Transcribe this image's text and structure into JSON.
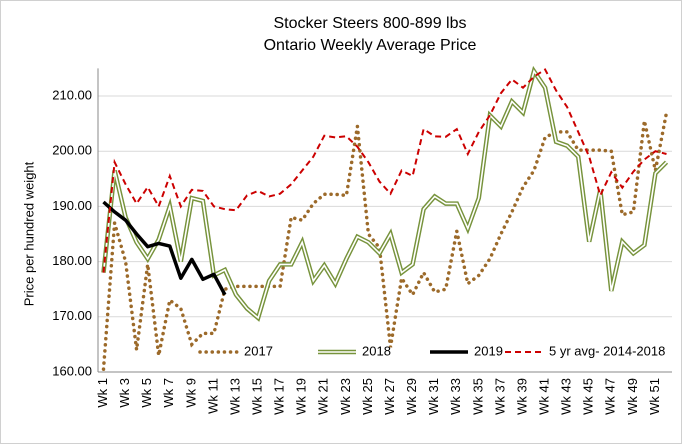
{
  "chart_data": {
    "type": "line",
    "title": [
      "Stocker Steers 800-899 lbs",
      "Ontario Weekly Average Price"
    ],
    "y_label": "Price per hundred weight",
    "categories": [
      "Wk 1",
      null,
      "Wk 3",
      null,
      "Wk 5",
      null,
      "Wk 7",
      null,
      "Wk 9",
      null,
      "Wk 11",
      null,
      "Wk 13",
      null,
      "Wk 15",
      null,
      "Wk 17",
      null,
      "Wk 19",
      null,
      "Wk 21",
      null,
      "Wk 23",
      null,
      "Wk 25",
      null,
      "Wk 27",
      null,
      "Wk 29",
      null,
      "Wk 31",
      null,
      "Wk 33",
      null,
      "Wk 35",
      null,
      "Wk 37",
      null,
      "Wk 39",
      null,
      "Wk 41",
      null,
      "Wk 43",
      null,
      "Wk 45",
      null,
      "Wk 47",
      null,
      "Wk 49",
      null,
      "Wk 51",
      null
    ],
    "ylim": [
      160,
      215
    ],
    "yticks": [
      {
        "value": 160,
        "label": "160.00"
      },
      {
        "value": 170,
        "label": "170.00"
      },
      {
        "value": 180,
        "label": "180.00"
      },
      {
        "value": 190,
        "label": "190.00"
      },
      {
        "value": 200,
        "label": "200.00"
      },
      {
        "value": 210,
        "label": "210.00"
      }
    ],
    "grid": true,
    "legend": "bottom",
    "series": [
      {
        "name": "2017",
        "color": "#9c6a2a",
        "style": "dotted",
        "values": [
          160.5,
          187,
          180,
          164,
          179.5,
          163,
          173,
          171.5,
          165,
          167,
          167,
          175,
          175.5,
          175.5,
          175.5,
          175.5,
          175.5,
          188,
          187.5,
          190.5,
          192.2,
          192.2,
          192,
          204.5,
          185,
          182.5,
          164.5,
          177,
          174,
          178,
          174.5,
          175,
          185.5,
          176,
          177.5,
          180.5,
          185,
          189,
          193.5,
          196.5,
          202.5,
          203.5,
          203.5,
          200.2,
          200.2,
          200.2,
          200,
          188.5,
          189,
          205.5,
          196.5,
          207
        ]
      },
      {
        "name": "2018",
        "color": "#77933c",
        "style": "double",
        "values": [
          178,
          196.5,
          188,
          183.5,
          180.5,
          184,
          190,
          180,
          191.5,
          191,
          177.5,
          178.5,
          174,
          171.5,
          169.8,
          176.5,
          179.5,
          179.5,
          183.5,
          176.5,
          179.3,
          176,
          180.5,
          184.5,
          183.5,
          181.5,
          185,
          178,
          179.5,
          189.5,
          191.8,
          190.5,
          190.5,
          186,
          191.5,
          206.5,
          204.5,
          209,
          207,
          214.5,
          211.5,
          201.7,
          201,
          199,
          183.6,
          193,
          174.7,
          183.6,
          181.5,
          183,
          196,
          198
        ]
      },
      {
        "name": "2019",
        "color": "#000000",
        "style": "solid",
        "values": [
          190.8,
          189,
          187.5,
          185,
          182.7,
          183.3,
          182.8,
          177,
          180.4,
          176.8,
          177.7,
          174,
          null,
          null,
          null,
          null,
          null,
          null,
          null,
          null,
          null,
          null,
          null,
          null,
          null,
          null,
          null,
          null,
          null,
          null,
          null,
          null,
          null,
          null,
          null,
          null,
          null,
          null,
          null,
          null,
          null,
          null,
          null,
          null,
          null,
          null,
          null,
          null,
          null,
          null,
          null,
          null
        ]
      },
      {
        "name": "5 yr avg- 2014-2018",
        "color": "#cc0000",
        "style": "dashed",
        "values": [
          178,
          198,
          194,
          190.5,
          193.5,
          190,
          195.5,
          190,
          193,
          192.8,
          190,
          189.5,
          189.3,
          192,
          192.8,
          191.8,
          192.3,
          194,
          196.5,
          199,
          202.8,
          202.5,
          202.7,
          200.8,
          198,
          194.5,
          192.3,
          196.5,
          195.5,
          204,
          202.7,
          202.6,
          204,
          199.5,
          203.5,
          206.5,
          210.5,
          213,
          211.5,
          213.5,
          214.8,
          211,
          208,
          203.5,
          199,
          192,
          196.2,
          193.4,
          196.3,
          198.5,
          200,
          199.5
        ]
      }
    ]
  }
}
